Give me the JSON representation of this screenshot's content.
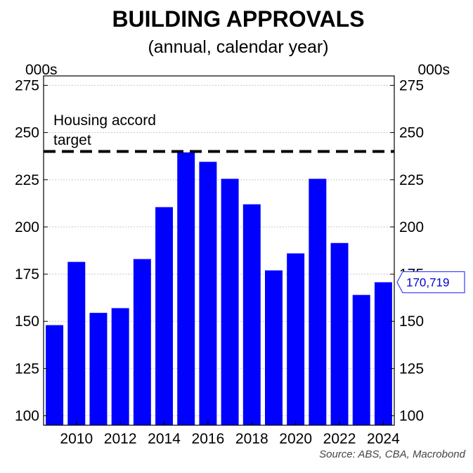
{
  "chart_data": {
    "type": "bar",
    "title": "BUILDING APPROVALS",
    "subtitle": "(annual, calendar year)",
    "y_unit_left": "000s",
    "y_unit_right": "000s",
    "ylim": [
      95,
      280
    ],
    "yticks": [
      100,
      125,
      150,
      175,
      200,
      225,
      250,
      275
    ],
    "categories": [
      "2009",
      "2010",
      "2011",
      "2012",
      "2013",
      "2014",
      "2015",
      "2016",
      "2017",
      "2018",
      "2019",
      "2020",
      "2021",
      "2022",
      "2023",
      "2024"
    ],
    "xtick_labels": [
      "2010",
      "2012",
      "2014",
      "2016",
      "2018",
      "2020",
      "2022",
      "2024"
    ],
    "values": [
      148,
      181.5,
      154.5,
      157,
      183,
      210.5,
      239.5,
      234.5,
      225.5,
      212,
      177,
      186,
      225.5,
      191.5,
      164,
      170.719
    ],
    "bar_color": "#0000ff",
    "grid": true,
    "reference_line": {
      "label": "Housing accord target",
      "value": 240,
      "style": "dashed",
      "color": "#000000"
    },
    "last_value_label": "170,719",
    "last_value_color": "#0000cc",
    "source": "Source: ABS, CBA, Macrobond"
  }
}
